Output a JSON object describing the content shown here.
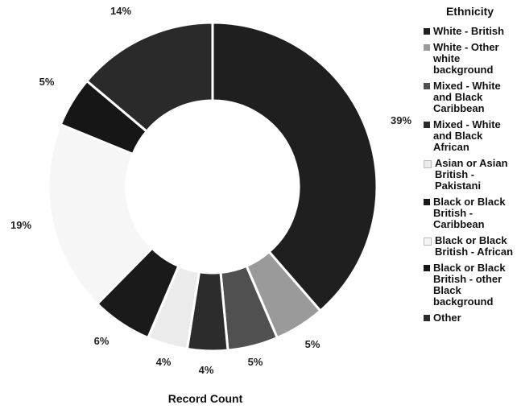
{
  "chart_data": {
    "type": "donut",
    "xlabel": "Record Count",
    "legend": {
      "title": "Ethnicity",
      "position": "right"
    },
    "series": [
      {
        "name": "White - British",
        "value": 39,
        "label": "39%",
        "color": "#1f1f1f"
      },
      {
        "name": "White - Other white background",
        "value": 5,
        "label": "5%",
        "color": "#9a9a9a"
      },
      {
        "name": "Mixed - White and Black Caribbean",
        "value": 5,
        "label": "5%",
        "color": "#505050"
      },
      {
        "name": "Mixed - White and Black African",
        "value": 4,
        "label": "4%",
        "color": "#2c2c2c"
      },
      {
        "name": "Asian or Asian British - Pakistani",
        "value": 4,
        "label": "4%",
        "color": "#ebebeb"
      },
      {
        "name": "Black or Black British - Caribbean",
        "value": 6,
        "label": "6%",
        "color": "#1a1a1a"
      },
      {
        "name": "Black or Black British - African",
        "value": 19,
        "label": "19%",
        "color": "#f6f6f6"
      },
      {
        "name": "Black or Black British - other Black background",
        "value": 5,
        "label": "5%",
        "color": "#161616"
      },
      {
        "name": "Other",
        "value": 14,
        "label": "14%",
        "color": "#2a2a2a"
      }
    ]
  }
}
